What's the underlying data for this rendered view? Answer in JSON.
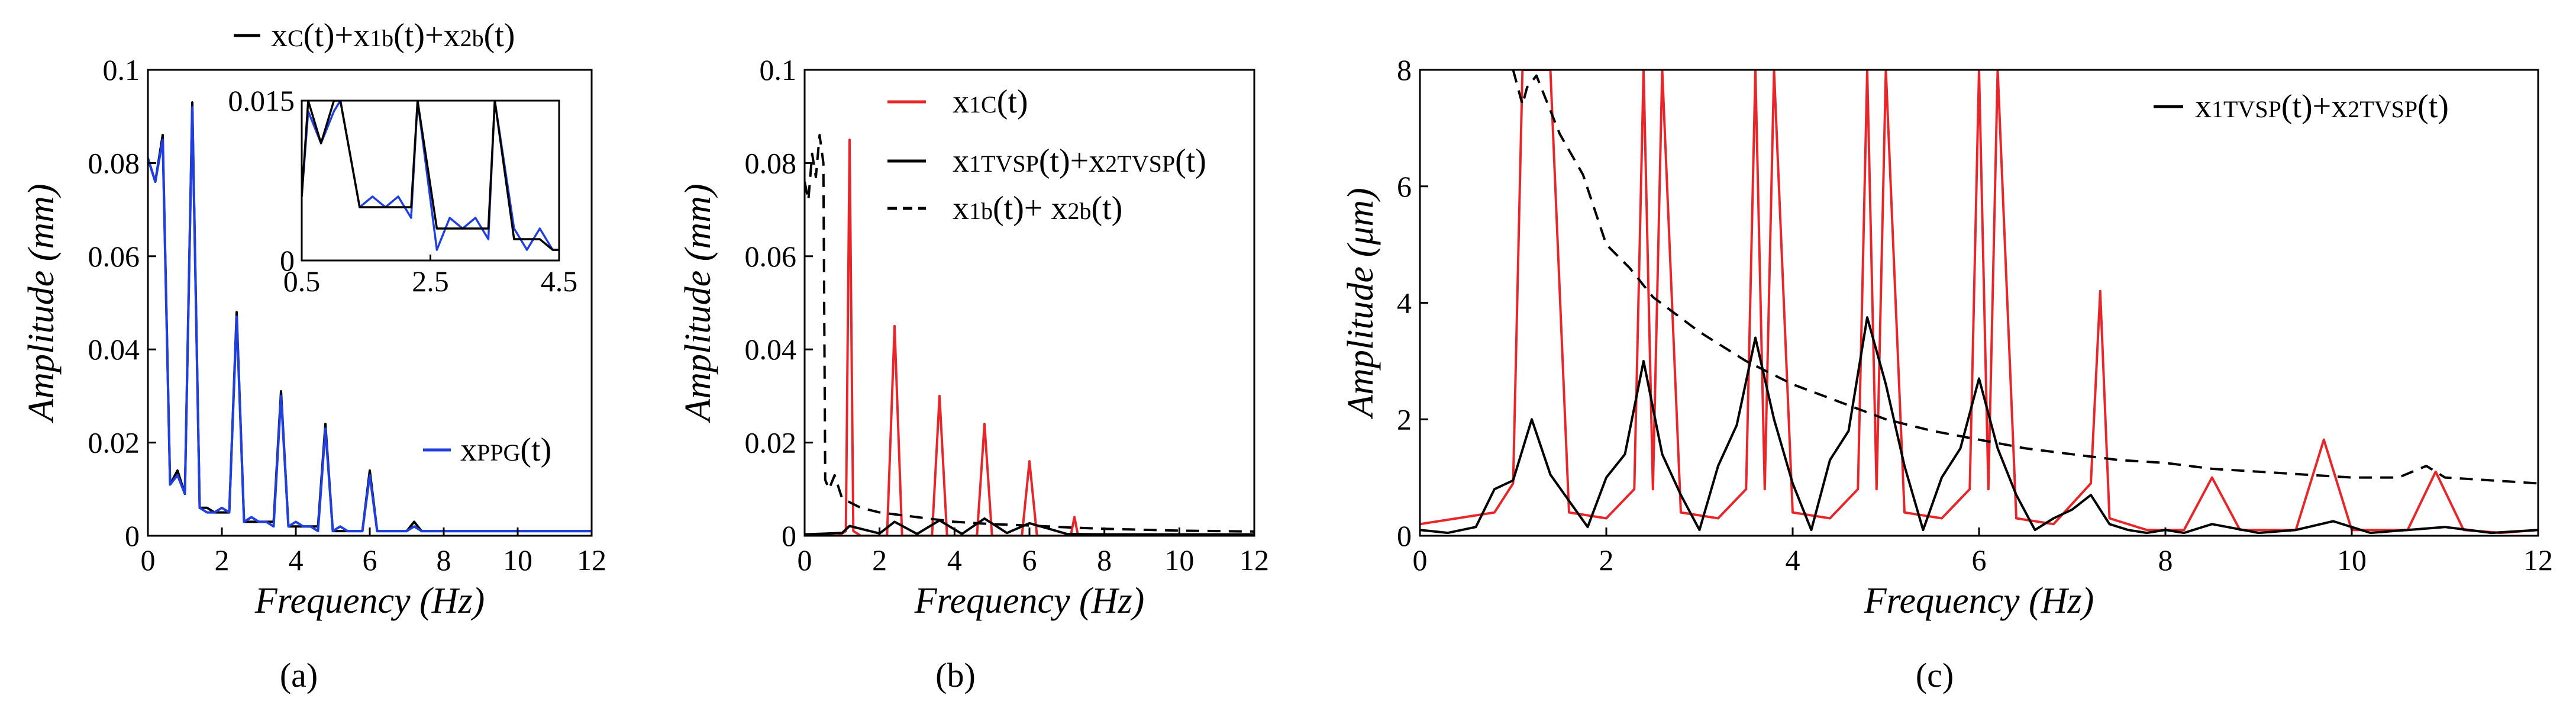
{
  "figure": {
    "panel_labels": [
      "(a)",
      "(b)",
      "(c)"
    ]
  },
  "chart_data": [
    {
      "type": "line",
      "panel": "a",
      "xlabel": "Frequency (Hz)",
      "ylabel": "Amplitude (mm)",
      "xlim": [
        0,
        12
      ],
      "ylim": [
        0,
        0.1
      ],
      "xticks": [
        0,
        2,
        4,
        6,
        8,
        10,
        12
      ],
      "xtick_labels": [
        "0",
        "2",
        "4",
        "6",
        "8",
        "10",
        "12"
      ],
      "yticks": [
        0,
        0.02,
        0.04,
        0.06,
        0.08,
        0.1
      ],
      "ytick_labels": [
        "0",
        "0.02",
        "0.04",
        "0.06",
        "0.08",
        "0.1"
      ],
      "legend": [
        {
          "label": "xC(t)+x1b(t)+x2b(t)",
          "color": "#000000",
          "dash": "solid"
        },
        {
          "label": "xPPG(t)",
          "color": "#1f3fe0",
          "dash": "solid"
        }
      ],
      "series": [
        {
          "name": "xC(t)+x1b(t)+x2b(t)",
          "color": "#000000",
          "x": [
            0,
            0.2,
            0.4,
            0.6,
            0.8,
            1.0,
            1.2,
            1.4,
            1.6,
            1.8,
            2.0,
            2.2,
            2.4,
            2.6,
            2.8,
            3.0,
            3.2,
            3.4,
            3.6,
            3.8,
            4.0,
            4.2,
            4.4,
            4.6,
            4.8,
            5.0,
            5.2,
            5.4,
            5.6,
            5.8,
            6.0,
            6.2,
            6.4,
            6.6,
            6.8,
            7.0,
            7.2,
            7.4,
            7.6,
            7.8,
            8.0,
            8.5,
            9,
            9.5,
            10,
            10.5,
            11,
            11.5,
            12
          ],
          "y": [
            0.081,
            0.076,
            0.086,
            0.011,
            0.014,
            0.009,
            0.093,
            0.006,
            0.006,
            0.005,
            0.005,
            0.005,
            0.048,
            0.003,
            0.003,
            0.003,
            0.003,
            0.003,
            0.031,
            0.002,
            0.002,
            0.002,
            0.002,
            0.002,
            0.024,
            0.001,
            0.001,
            0.001,
            0.001,
            0.001,
            0.014,
            0.001,
            0.001,
            0.001,
            0.001,
            0.001,
            0.003,
            0.001,
            0.001,
            0.001,
            0.001,
            0.001,
            0.001,
            0.001,
            0.001,
            0.001,
            0.001,
            0.001,
            0.001
          ]
        },
        {
          "name": "xPPG(t)",
          "color": "#1f3fe0",
          "x": [
            0,
            0.2,
            0.4,
            0.6,
            0.8,
            1.0,
            1.2,
            1.4,
            1.6,
            1.8,
            2.0,
            2.2,
            2.4,
            2.6,
            2.8,
            3.0,
            3.2,
            3.4,
            3.6,
            3.8,
            4.0,
            4.2,
            4.4,
            4.6,
            4.8,
            5.0,
            5.2,
            5.4,
            5.6,
            5.8,
            6.0,
            6.2,
            6.4,
            6.6,
            6.8,
            7.0,
            7.2,
            7.4,
            7.6,
            7.8,
            8.0,
            8.5,
            9,
            9.5,
            10,
            10.5,
            11,
            11.5,
            12
          ],
          "y": [
            0.081,
            0.076,
            0.085,
            0.011,
            0.013,
            0.009,
            0.092,
            0.006,
            0.005,
            0.005,
            0.006,
            0.005,
            0.047,
            0.003,
            0.004,
            0.003,
            0.003,
            0.002,
            0.03,
            0.002,
            0.003,
            0.002,
            0.002,
            0.001,
            0.023,
            0.001,
            0.002,
            0.001,
            0.001,
            0.001,
            0.013,
            0.001,
            0.001,
            0.001,
            0.001,
            0.001,
            0.002,
            0.001,
            0.001,
            0.001,
            0.001,
            0.001,
            0.001,
            0.001,
            0.001,
            0.001,
            0.001,
            0.001,
            0.001
          ]
        }
      ],
      "inset": {
        "xlim": [
          0.5,
          4.5
        ],
        "ylim": [
          0,
          0.015
        ],
        "xticks": [
          0.5,
          2.5,
          4.5
        ],
        "xtick_labels": [
          "0.5",
          "2.5",
          "4.5"
        ],
        "yticks": [
          0,
          0.015
        ],
        "ytick_labels": [
          "0",
          "0.015"
        ],
        "series": [
          {
            "name": "xC(t)+x1b(t)+x2b(t)",
            "color": "#000000",
            "x": [
              0.5,
              0.6,
              0.8,
              1.0,
              1.1,
              1.4,
              1.6,
              1.8,
              2.0,
              2.2,
              2.3,
              2.6,
              2.8,
              3.0,
              3.2,
              3.4,
              3.5,
              3.8,
              4.0,
              4.2,
              4.4,
              4.5
            ],
            "y": [
              0.006,
              0.015,
              0.011,
              0.015,
              0.015,
              0.005,
              0.005,
              0.005,
              0.005,
              0.005,
              0.015,
              0.003,
              0.003,
              0.003,
              0.003,
              0.003,
              0.015,
              0.002,
              0.002,
              0.002,
              0.001,
              0.001
            ]
          },
          {
            "name": "xPPG(t)",
            "color": "#1f3fe0",
            "x": [
              0.5,
              0.6,
              0.8,
              1.0,
              1.1,
              1.4,
              1.6,
              1.8,
              2.0,
              2.2,
              2.3,
              2.6,
              2.8,
              3.0,
              3.2,
              3.4,
              3.5,
              3.8,
              4.0,
              4.2,
              4.4,
              4.5
            ],
            "y": [
              0.006,
              0.014,
              0.011,
              0.014,
              0.015,
              0.005,
              0.006,
              0.005,
              0.006,
              0.004,
              0.015,
              0.001,
              0.004,
              0.003,
              0.004,
              0.002,
              0.015,
              0.003,
              0.001,
              0.003,
              0.001,
              0.001
            ]
          }
        ]
      }
    },
    {
      "type": "line",
      "panel": "b",
      "xlabel": "Frequency (Hz)",
      "ylabel": "Amplitude (mm)",
      "xlim": [
        0,
        12
      ],
      "ylim": [
        0,
        0.1
      ],
      "xticks": [
        0,
        2,
        4,
        6,
        8,
        10,
        12
      ],
      "xtick_labels": [
        "0",
        "2",
        "4",
        "6",
        "8",
        "10",
        "12"
      ],
      "yticks": [
        0,
        0.02,
        0.04,
        0.06,
        0.08,
        0.1
      ],
      "ytick_labels": [
        "0",
        "0.02",
        "0.04",
        "0.06",
        "0.08",
        "0.1"
      ],
      "legend": [
        {
          "label": "x1C(t)",
          "color": "#e8262a",
          "dash": "solid"
        },
        {
          "label": "x1TVSP(t)+x2TVSP(t)",
          "color": "#000000",
          "dash": "solid"
        },
        {
          "label": "x1b(t)+ x2b(t)",
          "color": "#000000",
          "dash": "dashed"
        }
      ],
      "series": [
        {
          "name": "x1C(t)",
          "color": "#e8262a",
          "dash": "solid",
          "x": [
            0,
            0.9,
            1.1,
            1.2,
            1.3,
            1.5,
            2.2,
            2.4,
            2.6,
            3.4,
            3.6,
            3.8,
            4.6,
            4.8,
            5.0,
            5.8,
            6.0,
            6.2,
            7.1,
            7.2,
            7.3,
            12
          ],
          "y": [
            0,
            0,
            0.001,
            0.085,
            0.001,
            0,
            0,
            0.045,
            0,
            0,
            0.03,
            0,
            0,
            0.024,
            0,
            0,
            0.016,
            0,
            0,
            0.004,
            0,
            0
          ]
        },
        {
          "name": "x1TVSP(t)+x2TVSP(t)",
          "color": "#000000",
          "dash": "solid",
          "x": [
            0,
            1,
            1.2,
            2.0,
            2.4,
            3.0,
            3.6,
            4.2,
            4.8,
            5.4,
            6.0,
            7.0,
            8.0,
            9.0,
            10.0,
            11.0,
            12
          ],
          "y": [
            0.0003,
            0.0006,
            0.0021,
            0.0005,
            0.003,
            0.0004,
            0.0033,
            0.0004,
            0.0037,
            0.0006,
            0.0027,
            0.0004,
            0.0003,
            0.0003,
            0.0003,
            0.0003,
            0.0003
          ]
        },
        {
          "name": "x1b(t)+ x2b(t)",
          "color": "#000000",
          "dash": "dashed",
          "x": [
            0,
            0.1,
            0.2,
            0.3,
            0.4,
            0.5,
            0.55,
            0.65,
            0.8,
            1.0,
            1.5,
            2,
            3,
            4,
            5,
            6,
            7,
            8,
            9,
            10,
            11,
            12
          ],
          "y": [
            0.076,
            0.072,
            0.082,
            0.077,
            0.086,
            0.08,
            0.012,
            0.01,
            0.013,
            0.008,
            0.006,
            0.005,
            0.004,
            0.003,
            0.0025,
            0.0022,
            0.0018,
            0.0015,
            0.0013,
            0.0011,
            0.001,
            0.0009
          ]
        }
      ]
    },
    {
      "type": "line",
      "panel": "c",
      "xlabel": "Frequency (Hz)",
      "ylabel": "Amplitude (μm)",
      "xlim": [
        0,
        12
      ],
      "ylim": [
        0,
        8
      ],
      "xticks": [
        0,
        2,
        4,
        6,
        8,
        10,
        12
      ],
      "xtick_labels": [
        "0",
        "2",
        "4",
        "6",
        "8",
        "10",
        "12"
      ],
      "yticks": [
        0,
        2,
        4,
        6,
        8
      ],
      "ytick_labels": [
        "0",
        "2",
        "4",
        "6",
        "8"
      ],
      "legend": [
        {
          "label": "x1TVSP(t)+x2TVSP(t)",
          "color": "#000000",
          "dash": "solid"
        }
      ],
      "series": [
        {
          "name": "x1C(t)",
          "color": "#e8262a",
          "dash": "solid",
          "x": [
            0,
            0.4,
            0.8,
            1.0,
            1.1,
            1.2,
            1.3,
            1.4,
            1.6,
            2.0,
            2.3,
            2.4,
            2.5,
            2.6,
            2.8,
            3.2,
            3.5,
            3.6,
            3.7,
            3.8,
            4.0,
            4.4,
            4.7,
            4.8,
            4.9,
            5.0,
            5.2,
            5.6,
            5.9,
            6.0,
            6.1,
            6.2,
            6.4,
            6.8,
            7.2,
            7.3,
            7.4,
            7.8,
            8.2,
            8.5,
            8.8,
            9.4,
            9.7,
            10.0,
            10.6,
            10.9,
            11.2,
            11.6,
            12
          ],
          "y": [
            0.2,
            0.3,
            0.4,
            0.9,
            8,
            8,
            8,
            8,
            0.4,
            0.3,
            0.8,
            8,
            0.8,
            8,
            0.4,
            0.3,
            0.8,
            8,
            0.8,
            8,
            0.4,
            0.3,
            0.8,
            8,
            0.8,
            8,
            0.4,
            0.3,
            0.8,
            8,
            0.8,
            8,
            0.3,
            0.2,
            0.9,
            4.2,
            0.3,
            0.1,
            0.1,
            1.0,
            0.1,
            0.1,
            1.65,
            0.1,
            0.1,
            1.1,
            0.1,
            0.05,
            0.1
          ]
        },
        {
          "name": "x1TVSP(t)+x2TVSP(t)",
          "color": "#000000",
          "dash": "solid",
          "x": [
            0,
            0.3,
            0.6,
            0.8,
            1.0,
            1.2,
            1.4,
            1.6,
            1.8,
            2.0,
            2.2,
            2.4,
            2.6,
            2.8,
            3.0,
            3.2,
            3.4,
            3.6,
            3.8,
            4.0,
            4.2,
            4.4,
            4.6,
            4.8,
            5.0,
            5.2,
            5.4,
            5.6,
            5.8,
            6.0,
            6.2,
            6.4,
            6.6,
            6.8,
            7.0,
            7.2,
            7.4,
            7.6,
            7.8,
            8.0,
            8.2,
            8.5,
            9,
            9.4,
            9.8,
            10.2,
            10.6,
            11,
            11.5,
            12
          ],
          "y": [
            0.1,
            0.05,
            0.15,
            0.8,
            0.95,
            2.0,
            1.05,
            0.6,
            0.15,
            1.0,
            1.4,
            3.0,
            1.4,
            0.7,
            0.1,
            1.2,
            1.9,
            3.4,
            2.0,
            0.9,
            0.1,
            1.3,
            1.8,
            3.75,
            2.6,
            1.2,
            0.1,
            1.0,
            1.5,
            2.7,
            1.5,
            0.7,
            0.1,
            0.3,
            0.45,
            0.7,
            0.2,
            0.1,
            0.05,
            0.1,
            0.05,
            0.2,
            0.05,
            0.1,
            0.25,
            0.05,
            0.1,
            0.15,
            0.05,
            0.1
          ]
        },
        {
          "name": "x1b(t)+ x2b(t)",
          "color": "#000000",
          "dash": "dashed",
          "x": [
            1.0,
            1.1,
            1.15,
            1.25,
            1.5,
            1.75,
            2.0,
            2.25,
            2.5,
            3.0,
            3.5,
            4.0,
            4.5,
            5.0,
            5.5,
            6.0,
            6.5,
            7.0,
            7.5,
            8.0,
            8.5,
            9.0,
            9.5,
            10.0,
            10.5,
            10.8,
            11.0,
            11.5,
            12
          ],
          "y": [
            8,
            7.4,
            7.7,
            7.9,
            6.9,
            6.2,
            5.0,
            4.6,
            4.1,
            3.5,
            3.0,
            2.6,
            2.3,
            2.0,
            1.8,
            1.65,
            1.5,
            1.4,
            1.3,
            1.25,
            1.15,
            1.1,
            1.05,
            1.0,
            1.0,
            1.2,
            1.0,
            0.95,
            0.9
          ]
        }
      ]
    }
  ]
}
